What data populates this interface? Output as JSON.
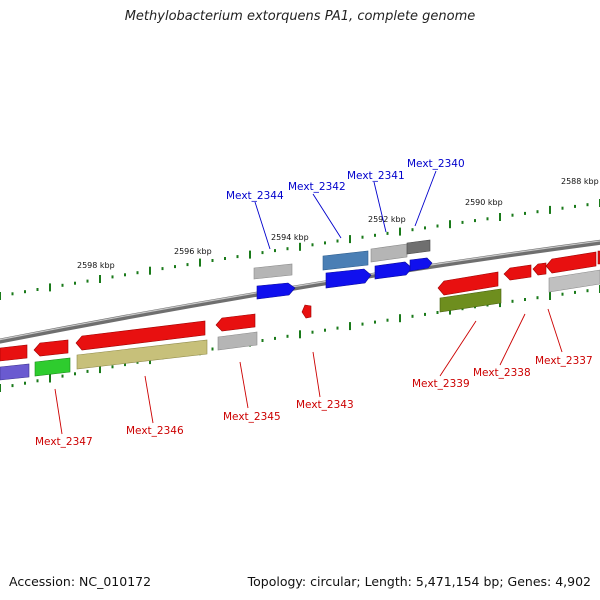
{
  "title": "Methylobacterium extorquens PA1, complete genome",
  "footer": {
    "accession": "Accession: NC_010172",
    "summary": "Topology: circular; Length: 5,471,154 bp; Genes: 4,902"
  },
  "colors": {
    "label_top": "#0000cc",
    "label_bottom": "#cc0000",
    "tick": "#1a7a1a",
    "backbone": "#7a7a7a"
  },
  "scale_labels": [
    "2598 kbp",
    "2596 kbp",
    "2594 kbp",
    "2592 kbp",
    "2590 kbp",
    "2588 kbp"
  ],
  "gene_labels_top": [
    "Mext_2344",
    "Mext_2342",
    "Mext_2341",
    "Mext_2340"
  ],
  "gene_labels_bottom": [
    "Mext_2347",
    "Mext_2346",
    "Mext_2345",
    "Mext_2343",
    "Mext_2339",
    "Mext_2338",
    "Mext_2337"
  ]
}
